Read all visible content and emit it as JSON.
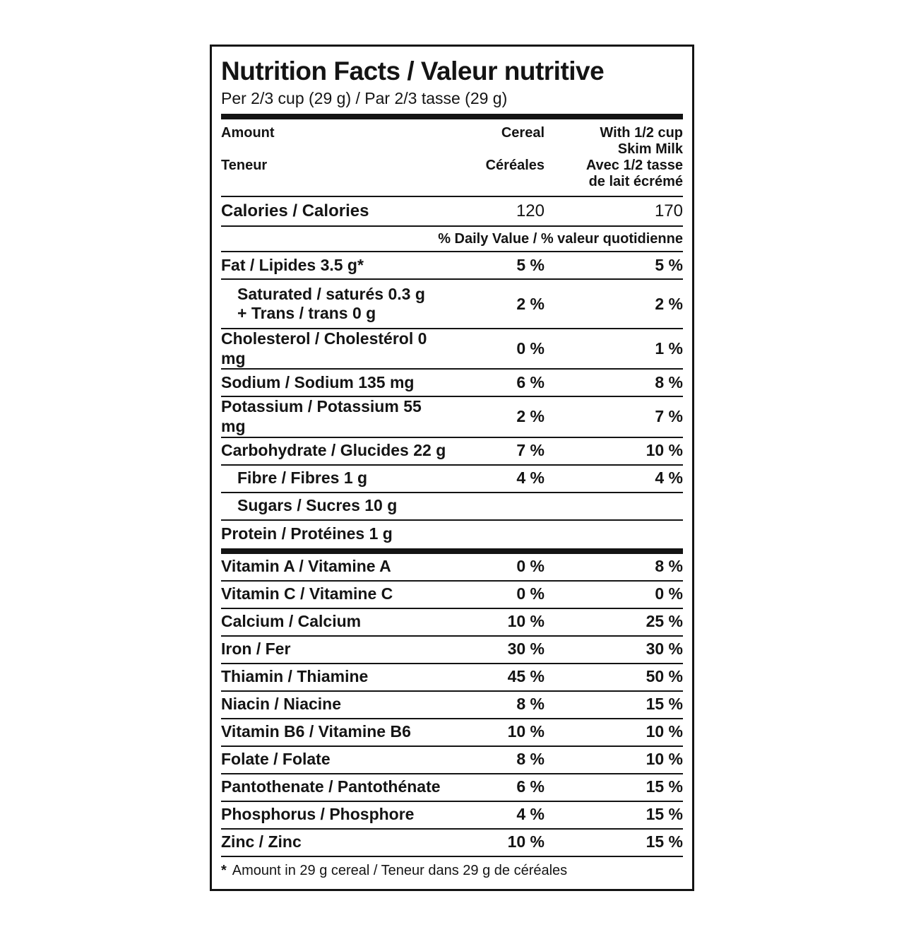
{
  "label": {
    "title": "Nutrition Facts / Valeur nutritive",
    "serving": "Per 2/3 cup (29 g) / Par 2/3 tasse (29 g)",
    "colors": {
      "ink": "#141414",
      "paper": "#ffffff"
    },
    "header": {
      "amount_en": "Amount",
      "amount_fr": "Teneur",
      "cereal_en": "Cereal",
      "cereal_fr": "Céréales",
      "milk_en_line1": "With 1/2 cup",
      "milk_en_line2": "Skim Milk",
      "milk_fr_line1": "Avec 1/2 tasse",
      "milk_fr_line2": "de lait écrémé"
    },
    "calories": {
      "label": "Calories / Calories",
      "cereal": "120",
      "milk": "170"
    },
    "daily_value_header": "% Daily Value / % valeur quotidienne",
    "rows": [
      {
        "label": "Fat / Lipides 3.5 g*",
        "cereal": "5 %",
        "milk": "5 %",
        "indent": false
      },
      {
        "label": "Saturated / saturés 0.3 g",
        "label2": "+ Trans / trans 0 g",
        "cereal": "2 %",
        "milk": "2 %",
        "indent": true
      },
      {
        "label": "Cholesterol / Cholestérol 0 mg",
        "cereal": "0 %",
        "milk": "1 %",
        "indent": false
      },
      {
        "label": "Sodium / Sodium 135 mg",
        "cereal": "6 %",
        "milk": "8 %",
        "indent": false
      },
      {
        "label": "Potassium / Potassium 55 mg",
        "cereal": "2 %",
        "milk": "7 %",
        "indent": false
      },
      {
        "label": "Carbohydrate / Glucides 22 g",
        "cereal": "7 %",
        "milk": "10 %",
        "indent": false
      },
      {
        "label": "Fibre / Fibres 1 g",
        "cereal": "4 %",
        "milk": "4 %",
        "indent": true
      },
      {
        "label": "Sugars / Sucres 10 g",
        "cereal": "",
        "milk": "",
        "indent": true
      },
      {
        "label": "Protein / Protéines 1 g",
        "cereal": "",
        "milk": "",
        "indent": false,
        "thick_after": true
      },
      {
        "label": "Vitamin A / Vitamine A",
        "cereal": "0 %",
        "milk": "8 %",
        "indent": false
      },
      {
        "label": "Vitamin C / Vitamine C",
        "cereal": "0 %",
        "milk": "0 %",
        "indent": false
      },
      {
        "label": "Calcium / Calcium",
        "cereal": "10 %",
        "milk": "25 %",
        "indent": false
      },
      {
        "label": "Iron / Fer",
        "cereal": "30 %",
        "milk": "30 %",
        "indent": false
      },
      {
        "label": "Thiamin / Thiamine",
        "cereal": "45 %",
        "milk": "50 %",
        "indent": false
      },
      {
        "label": "Niacin / Niacine",
        "cereal": "8 %",
        "milk": "15 %",
        "indent": false
      },
      {
        "label": "Vitamin B6 / Vitamine B6",
        "cereal": "10 %",
        "milk": "10 %",
        "indent": false
      },
      {
        "label": "Folate / Folate",
        "cereal": "8 %",
        "milk": "10 %",
        "indent": false
      },
      {
        "label": "Pantothenate / Pantothénate",
        "cereal": "6 %",
        "milk": "15 %",
        "indent": false
      },
      {
        "label": "Phosphorus / Phosphore",
        "cereal": "4 %",
        "milk": "15 %",
        "indent": false
      },
      {
        "label": "Zinc / Zinc",
        "cereal": "10 %",
        "milk": "15 %",
        "indent": false
      }
    ],
    "footnote_star": "*",
    "footnote": "Amount in 29 g cereal / Teneur dans 29 g de céréales"
  }
}
